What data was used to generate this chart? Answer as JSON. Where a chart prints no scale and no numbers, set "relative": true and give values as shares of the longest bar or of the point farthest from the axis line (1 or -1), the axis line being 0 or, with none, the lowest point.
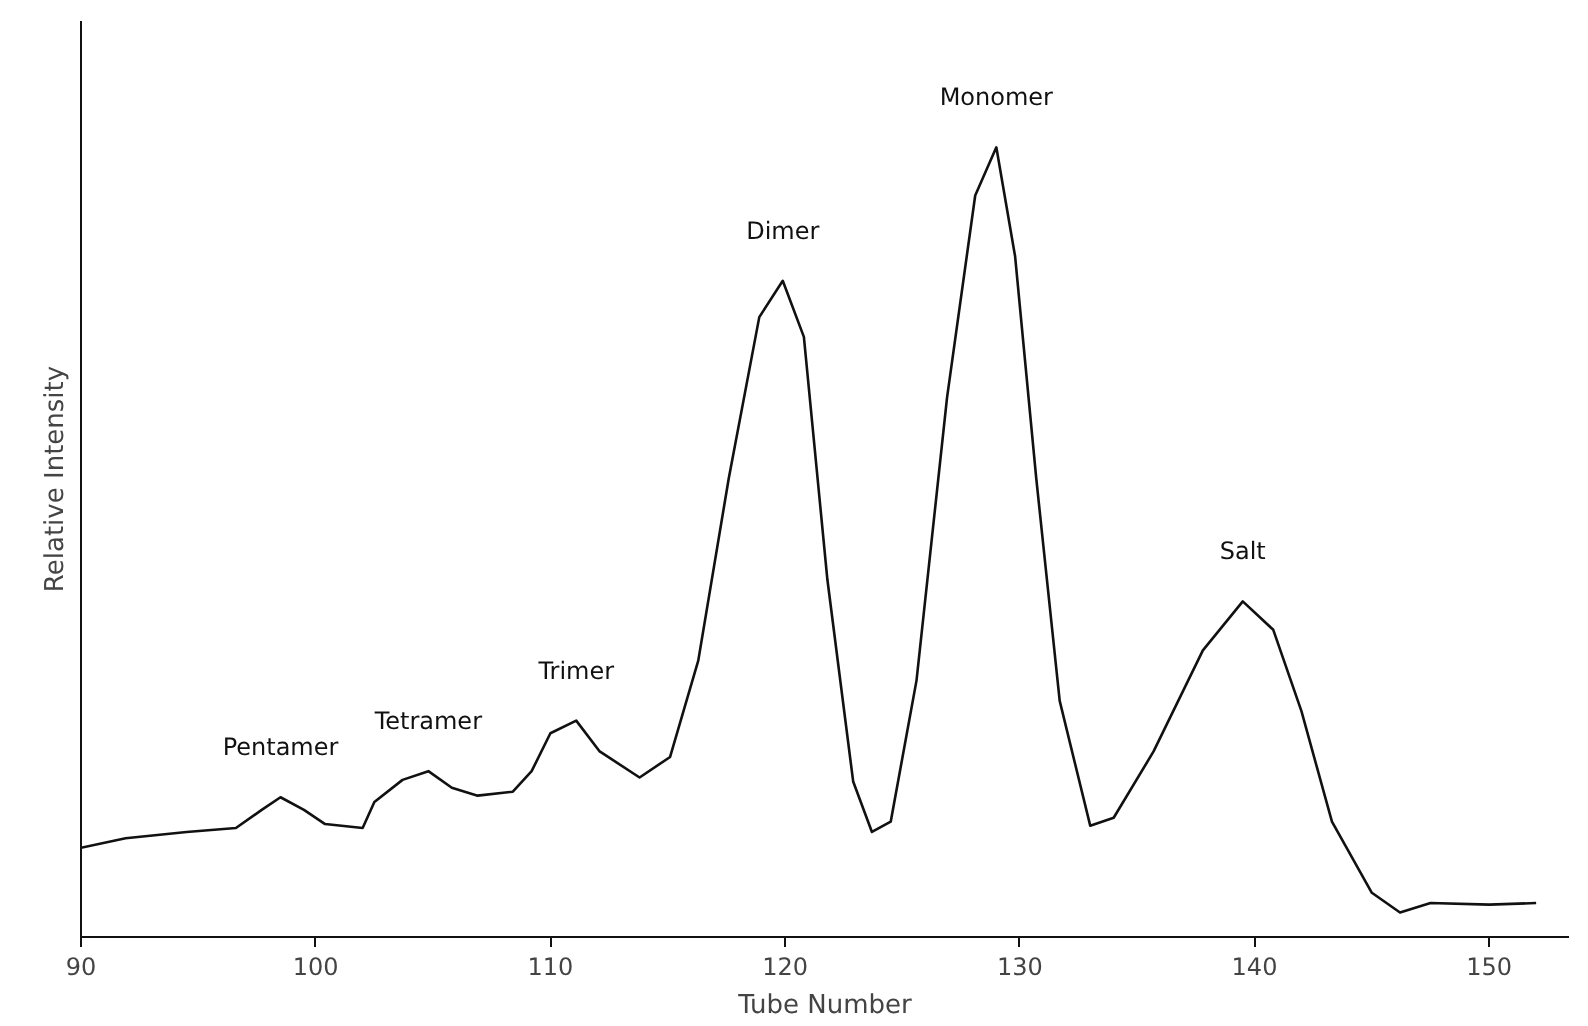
{
  "chart_data": {
    "type": "line",
    "relative": true,
    "xlabel": "Tube Number",
    "ylabel": "Relative Intensity",
    "x": [
      90,
      91.9,
      94.5,
      96.6,
      97.7,
      98.5,
      99.5,
      100.4,
      102.0,
      102.5,
      103.7,
      104.8,
      105.8,
      106.9,
      108.4,
      109.2,
      110.0,
      111.1,
      112.1,
      113.8,
      115.1,
      116.3,
      117.6,
      118.9,
      119.9,
      120.8,
      121.8,
      122.9,
      123.7,
      124.5,
      125.6,
      126.9,
      128.1,
      129.0,
      129.8,
      130.7,
      131.7,
      133.0,
      134.0,
      135.7,
      137.8,
      139.5,
      140.8,
      142.0,
      143.3,
      145.0,
      146.2,
      147.5,
      150.0,
      152.0
    ],
    "values": [
      0.113,
      0.125,
      0.133,
      0.138,
      0.161,
      0.177,
      0.161,
      0.143,
      0.138,
      0.171,
      0.199,
      0.21,
      0.189,
      0.179,
      0.184,
      0.21,
      0.258,
      0.274,
      0.235,
      0.202,
      0.228,
      0.35,
      0.581,
      0.785,
      0.831,
      0.76,
      0.453,
      0.197,
      0.133,
      0.146,
      0.325,
      0.683,
      0.939,
      1.0,
      0.862,
      0.581,
      0.299,
      0.141,
      0.151,
      0.235,
      0.363,
      0.425,
      0.389,
      0.286,
      0.146,
      0.056,
      0.031,
      0.043,
      0.041,
      0.043
    ],
    "color": "#111111",
    "line_style": "solid",
    "marker": "none",
    "grid": false,
    "xlim": [
      90,
      153.4
    ],
    "xticks": [
      90,
      100,
      110,
      120,
      130,
      140,
      150
    ],
    "annotations": [
      {
        "text": "Pentamer",
        "x": 98.5,
        "y": 0.177
      },
      {
        "text": "Tetramer",
        "x": 104.8,
        "y": 0.21
      },
      {
        "text": "Trimer",
        "x": 111.1,
        "y": 0.274
      },
      {
        "text": "Dimer",
        "x": 119.9,
        "y": 0.831
      },
      {
        "text": "Monomer",
        "x": 129.0,
        "y": 1.0
      },
      {
        "text": "Salt",
        "x": 139.5,
        "y": 0.425
      }
    ]
  }
}
